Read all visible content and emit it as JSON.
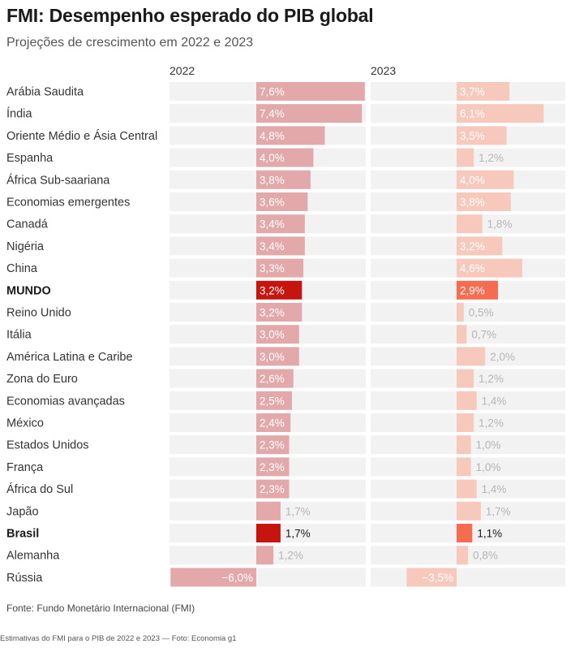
{
  "title": "FMI: Desempenho esperado do PIB global",
  "subtitle": "Projeções de crescimento em 2022 e 2023",
  "source": "Fonte: Fundo Monetário Internacional (FMI)",
  "credit": "Estimativas do FMI para o PIB de 2022 e 2023 — Foto: Economia g1",
  "colors": {
    "bar_2022": "#e3a9aa",
    "bar_2023": "#f7c8bc",
    "highlight_2022": "#c6150f",
    "highlight_2023": "#f56d50",
    "row_background": "#f2f2f2"
  },
  "chart_data": {
    "type": "bar",
    "orientation": "horizontal",
    "columns": [
      "2022",
      "2023"
    ],
    "categories": [
      "Arábia Saudita",
      "Índia",
      "Oriente Médio e Ásia Central",
      "Espanha",
      "África Sub-saariana",
      "Economias emergentes",
      "Canadá",
      "Nigéria",
      "China",
      "MUNDO",
      "Reino Unido",
      "Itália",
      "América Latina e Caribe",
      "Zona do Euro",
      "Economias avançadas",
      "México",
      "Estados Unidos",
      "França",
      "África do Sul",
      "Japão",
      "Brasil",
      "Alemanha",
      "Rússia"
    ],
    "highlighted": [
      "MUNDO",
      "Brasil"
    ],
    "series": [
      {
        "name": "2022",
        "values": [
          7.6,
          7.4,
          4.8,
          4.0,
          3.8,
          3.6,
          3.4,
          3.4,
          3.3,
          3.2,
          3.2,
          3.0,
          3.0,
          2.6,
          2.5,
          2.4,
          2.3,
          2.3,
          2.3,
          1.7,
          1.7,
          1.2,
          -6.0
        ],
        "labels": [
          "7,6%",
          "7,4%",
          "4,8%",
          "4,0%",
          "3,8%",
          "3,6%",
          "3,4%",
          "3,4%",
          "3,3%",
          "3,2%",
          "3,2%",
          "3,0%",
          "3,0%",
          "2,6%",
          "2,5%",
          "2,4%",
          "2,3%",
          "2,3%",
          "2,3%",
          "1,7%",
          "1,7%",
          "1,2%",
          "−6,0%"
        ]
      },
      {
        "name": "2023",
        "values": [
          3.7,
          6.1,
          3.5,
          1.2,
          4.0,
          3.8,
          1.8,
          3.2,
          4.6,
          2.9,
          0.5,
          0.7,
          2.0,
          1.2,
          1.4,
          1.2,
          1.0,
          1.0,
          1.4,
          1.7,
          1.1,
          0.8,
          -3.5
        ],
        "labels": [
          "3,7%",
          "6,1%",
          "3,5%",
          "1,2%",
          "4,0%",
          "3,8%",
          "1,8%",
          "3,2%",
          "4,6%",
          "2,9%",
          "0,5%",
          "0,7%",
          "2,0%",
          "1,2%",
          "1,4%",
          "1,2%",
          "1,0%",
          "1,0%",
          "1,4%",
          "1,7%",
          "1,1%",
          "0,8%",
          "−3,5%"
        ]
      }
    ]
  }
}
